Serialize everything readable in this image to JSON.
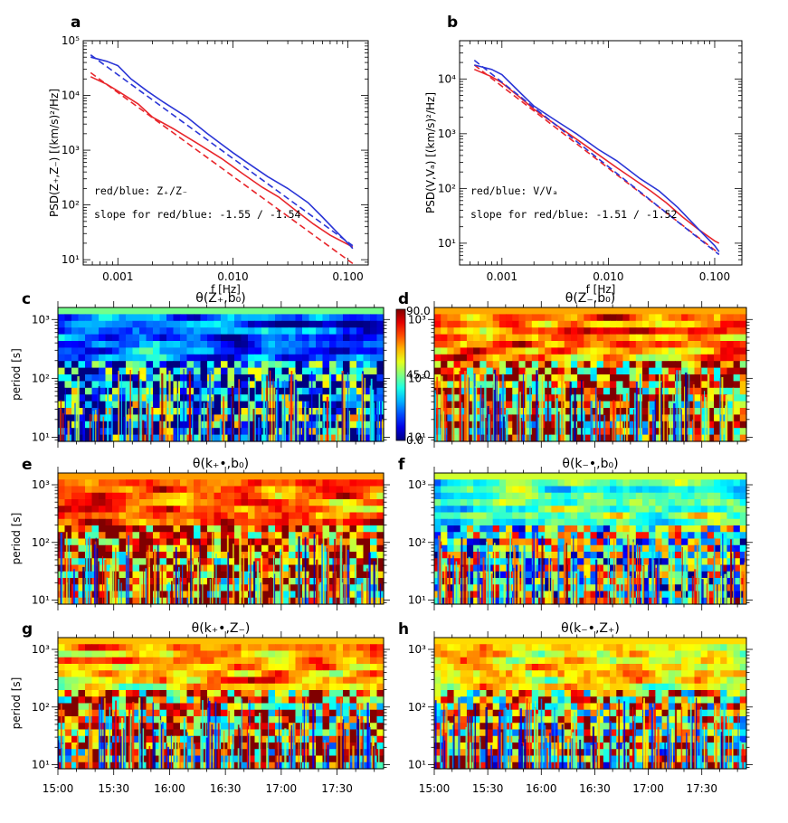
{
  "panels_top": [
    {
      "letter": "a",
      "type": "line",
      "xlabel": "f [Hz]",
      "ylabel": "PSD(Z₊,Z₋) [(km/s)²/Hz]",
      "xlim": [
        0.0005,
        0.15
      ],
      "ylim": [
        8,
        100000
      ],
      "xticks": [
        {
          "v": 0.001,
          "label": "0.001"
        },
        {
          "v": 0.01,
          "label": "0.010"
        },
        {
          "v": 0.1,
          "label": "0.100"
        }
      ],
      "yticks": [
        {
          "v": 10,
          "label": "10¹"
        },
        {
          "v": 100,
          "label": "10²"
        },
        {
          "v": 1000,
          "label": "10³"
        },
        {
          "v": 10000,
          "label": "10⁴"
        },
        {
          "v": 100000,
          "label": "10⁵"
        }
      ],
      "note1": "red/blue: Z₊/Z₋",
      "note2": "slope for red/blue:  -1.55 /  -1.54",
      "series": [
        {
          "name": "red",
          "color": "#e8262b",
          "dash": false,
          "x": [
            0.00058,
            0.0008,
            0.001,
            0.0015,
            0.002,
            0.003,
            0.005,
            0.008,
            0.012,
            0.018,
            0.025,
            0.035,
            0.05,
            0.07,
            0.1,
            0.11
          ],
          "y": [
            22000,
            16000,
            12000,
            7000,
            4000,
            2500,
            1300,
            700,
            380,
            210,
            140,
            80,
            45,
            28,
            19,
            17
          ]
        },
        {
          "name": "red-fit",
          "color": "#e8262b",
          "dash": true,
          "x": [
            0.00058,
            0.11
          ],
          "y": [
            26000,
            8.5
          ]
        },
        {
          "name": "blue",
          "color": "#2a35d6",
          "dash": false,
          "x": [
            0.00058,
            0.0008,
            0.001,
            0.0013,
            0.0018,
            0.0025,
            0.004,
            0.006,
            0.01,
            0.015,
            0.02,
            0.03,
            0.045,
            0.06,
            0.08,
            0.1,
            0.11
          ],
          "y": [
            50000,
            42000,
            35000,
            20000,
            12000,
            7500,
            4000,
            2000,
            900,
            500,
            330,
            200,
            110,
            60,
            32,
            20,
            16
          ]
        },
        {
          "name": "blue-fit",
          "color": "#2a35d6",
          "dash": true,
          "x": [
            0.00058,
            0.11
          ],
          "y": [
            55000,
            18
          ]
        }
      ]
    },
    {
      "letter": "b",
      "type": "line",
      "xlabel": "f [Hz]",
      "ylabel": "PSD(V,Vₐ) [(km/s)²/Hz]",
      "xlim": [
        0.0004,
        0.18
      ],
      "ylim": [
        4,
        50000
      ],
      "xticks": [
        {
          "v": 0.001,
          "label": "0.001"
        },
        {
          "v": 0.01,
          "label": "0.010"
        },
        {
          "v": 0.1,
          "label": "0.100"
        }
      ],
      "yticks": [
        {
          "v": 10,
          "label": "10¹"
        },
        {
          "v": 100,
          "label": "10²"
        },
        {
          "v": 1000,
          "label": "10³"
        },
        {
          "v": 10000,
          "label": "10⁴"
        }
      ],
      "note1": "red/blue: V/Vₐ",
      "note2": "slope for red/blue:  -1.51 /  -1.52",
      "series": [
        {
          "name": "red",
          "color": "#e8262b",
          "dash": false,
          "x": [
            0.00055,
            0.0008,
            0.001,
            0.0015,
            0.002,
            0.003,
            0.005,
            0.008,
            0.012,
            0.018,
            0.025,
            0.035,
            0.05,
            0.07,
            0.1,
            0.11
          ],
          "y": [
            15000,
            11000,
            8500,
            4500,
            2800,
            1600,
            800,
            420,
            240,
            140,
            90,
            55,
            30,
            18,
            11,
            10
          ]
        },
        {
          "name": "red-fit",
          "color": "#e8262b",
          "dash": true,
          "x": [
            0.00055,
            0.11
          ],
          "y": [
            18000,
            6.5
          ]
        },
        {
          "name": "blue",
          "color": "#2a35d6",
          "dash": false,
          "x": [
            0.00055,
            0.0008,
            0.001,
            0.0015,
            0.002,
            0.003,
            0.005,
            0.008,
            0.012,
            0.02,
            0.03,
            0.045,
            0.06,
            0.08,
            0.1,
            0.11
          ],
          "y": [
            18000,
            15000,
            12000,
            5500,
            3200,
            1900,
            1000,
            520,
            320,
            150,
            90,
            45,
            25,
            14,
            9,
            7
          ]
        },
        {
          "name": "blue-fit",
          "color": "#2a35d6",
          "dash": true,
          "x": [
            0.00055,
            0.11
          ],
          "y": [
            22000,
            6.2
          ]
        }
      ]
    }
  ],
  "panels_maps": [
    {
      "letter": "c",
      "title": "θ(Z₊,b₀)",
      "bias": 0.22,
      "seed": 3
    },
    {
      "letter": "d",
      "title": "θ(Z₋,b₀)",
      "bias": 0.78,
      "seed": 7
    },
    {
      "letter": "e",
      "title": "θ(k₊•,b₀)",
      "bias": 0.8,
      "seed": 11
    },
    {
      "letter": "f",
      "title": "θ(k₋•,b₀)",
      "bias": 0.45,
      "seed": 13
    },
    {
      "letter": "g",
      "title": "θ(k₊•,Z₋)",
      "bias": 0.72,
      "seed": 17
    },
    {
      "letter": "h",
      "title": "θ(k₋•,Z₊)",
      "bias": 0.65,
      "seed": 19
    }
  ],
  "map_axis": {
    "ylabel": "period [s]",
    "yticks": [
      "10¹",
      "10²",
      "10³"
    ],
    "xticks": [
      "15:00",
      "15:30",
      "16:00",
      "16:30",
      "17:00",
      "17:30"
    ]
  },
  "colorbar": {
    "labels": [
      "90.0",
      "45.0",
      "0.0"
    ]
  },
  "chart_data": [
    {
      "type": "line",
      "title": "a",
      "xlabel": "f [Hz]",
      "ylabel": "PSD(Z₊,Z₋) [(km/s)²/Hz]",
      "scale": "log-log",
      "annotations": [
        "red/blue: Z₊/Z₋",
        "slope for red/blue: -1.55 / -1.54"
      ],
      "series": [
        {
          "name": "Z+ (red)",
          "slope": -1.55
        },
        {
          "name": "Z- (blue)",
          "slope": -1.54
        }
      ]
    },
    {
      "type": "line",
      "title": "b",
      "xlabel": "f [Hz]",
      "ylabel": "PSD(V,Vₐ) [(km/s)²/Hz]",
      "scale": "log-log",
      "annotations": [
        "red/blue: V/Vₐ",
        "slope for red/blue: -1.51 / -1.52"
      ],
      "series": [
        {
          "name": "V (red)",
          "slope": -1.51
        },
        {
          "name": "Va (blue)",
          "slope": -1.52
        }
      ]
    },
    {
      "type": "heatmap",
      "panels": [
        "c",
        "d",
        "e",
        "f",
        "g",
        "h"
      ],
      "ylabel": "period [s]",
      "ylim": [
        10,
        1500
      ],
      "xlim": [
        "15:00",
        "17:55"
      ],
      "color_range": [
        0.0,
        90.0
      ],
      "colorbar_ticks": [
        0.0,
        45.0,
        90.0
      ]
    }
  ]
}
